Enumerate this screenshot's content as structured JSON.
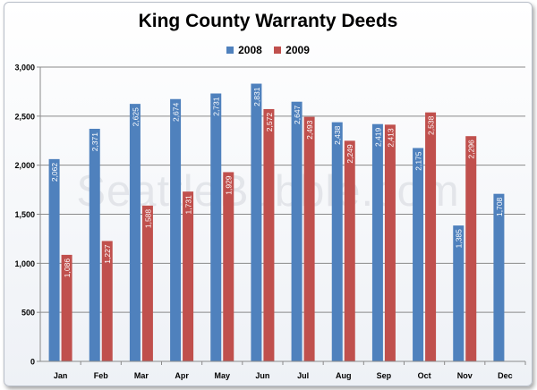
{
  "chart_data": {
    "type": "bar",
    "title": "King County Warranty Deeds",
    "watermark": "SeattleBubble.com",
    "categories": [
      "Jan",
      "Feb",
      "Mar",
      "Apr",
      "May",
      "Jun",
      "Jul",
      "Aug",
      "Sep",
      "Oct",
      "Nov",
      "Dec"
    ],
    "series": [
      {
        "name": "2008",
        "color": "#4f81bd",
        "values": [
          2062,
          2371,
          2625,
          2674,
          2731,
          2831,
          2647,
          2438,
          2419,
          2175,
          1385,
          1708
        ],
        "labels": [
          "2,062",
          "2,371",
          "2,625",
          "2,674",
          "2,731",
          "2,831",
          "2,647",
          "2,438",
          "2,419",
          "2,175",
          "1,385",
          "1,708"
        ]
      },
      {
        "name": "2009",
        "color": "#c0504d",
        "values": [
          1086,
          1227,
          1588,
          1731,
          1929,
          2572,
          2493,
          2249,
          2413,
          2538,
          2296,
          null
        ],
        "labels": [
          "1,086",
          "1,227",
          "1,588",
          "1,731",
          "1,929",
          "2,572",
          "2,493",
          "2,249",
          "2,413",
          "2,538",
          "2,296",
          null
        ]
      }
    ],
    "yticks": [
      0,
      500,
      1000,
      1500,
      2000,
      2500,
      3000
    ],
    "ytick_labels": [
      "0",
      "500",
      "1,000",
      "1,500",
      "2,000",
      "2,500",
      "3,000"
    ],
    "ylim": [
      0,
      3000
    ],
    "xlabel": "",
    "ylabel": "",
    "grid": true,
    "legend_position": "top"
  }
}
